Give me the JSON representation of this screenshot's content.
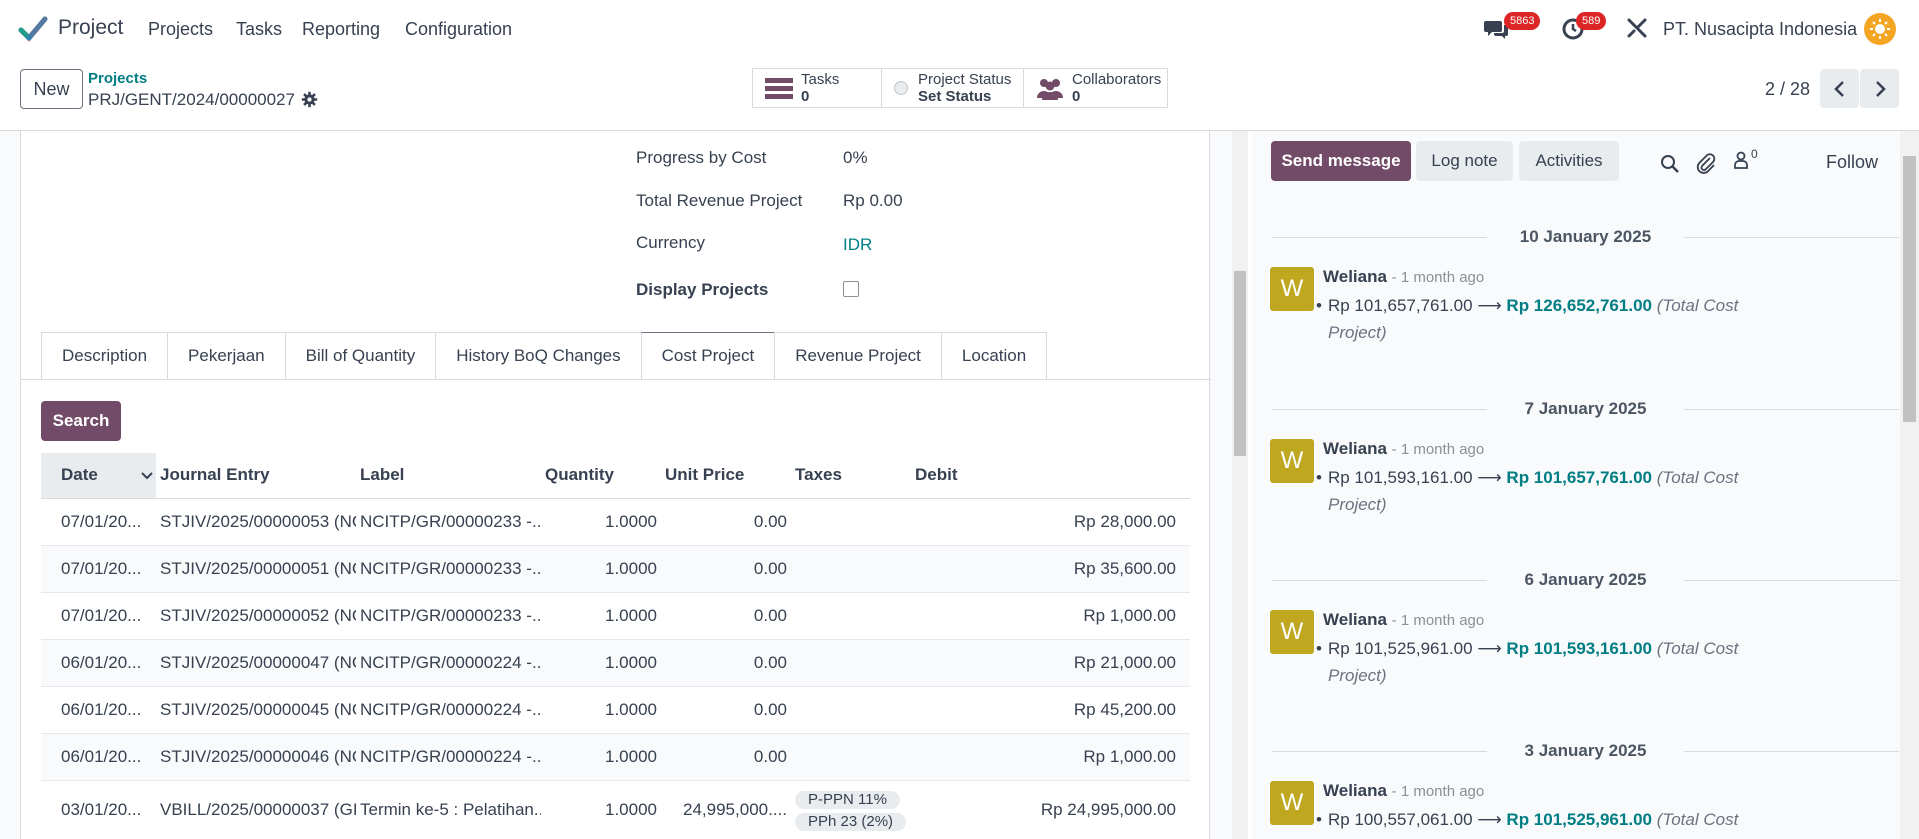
{
  "topbar": {
    "app_name": "Project",
    "menu": [
      "Projects",
      "Tasks",
      "Reporting",
      "Configuration"
    ],
    "messages_count": "5863",
    "activities_count": "589",
    "company": "PT. Nusacipta Indonesia"
  },
  "control_panel": {
    "new_label": "New",
    "breadcrumb_parent": "Projects",
    "breadcrumb_current": "PRJ/GENT/2024/00000027",
    "tasks_label": "Tasks",
    "tasks_count": "0",
    "status_label": "Project Status",
    "status_value": "Set Status",
    "collab_label": "Collaborators",
    "collab_count": "0",
    "pager": "2 / 28"
  },
  "form": {
    "fields": [
      {
        "label": "Progress by Cost",
        "value": "0%"
      },
      {
        "label": "Total Revenue Project",
        "value": "Rp 0.00"
      },
      {
        "label": "Currency",
        "value": "IDR"
      },
      {
        "label": "Display Projects",
        "value": ""
      }
    ],
    "tabs": [
      "Description",
      "Pekerjaan",
      "Bill of Quantity",
      "History BoQ Changes",
      "Cost Project",
      "Revenue Project",
      "Location"
    ],
    "active_tab": "Cost Project",
    "search_label": "Search"
  },
  "cost_table": {
    "headers": [
      "Date",
      "Journal Entry",
      "Label",
      "Quantity",
      "Unit Price",
      "Taxes",
      "Debit"
    ],
    "rows": [
      {
        "date": "07/01/20...",
        "entry": "STJIV/2025/00000053 (NC",
        "label": "NCITP/GR/00000233 -...",
        "qty": "1.0000",
        "price": "0.00",
        "taxes": [],
        "debit": "Rp 28,000.00"
      },
      {
        "date": "07/01/20...",
        "entry": "STJIV/2025/00000051 (NC",
        "label": "NCITP/GR/00000233 -...",
        "qty": "1.0000",
        "price": "0.00",
        "taxes": [],
        "debit": "Rp 35,600.00"
      },
      {
        "date": "07/01/20...",
        "entry": "STJIV/2025/00000052 (NC",
        "label": "NCITP/GR/00000233 -...",
        "qty": "1.0000",
        "price": "0.00",
        "taxes": [],
        "debit": "Rp 1,000.00"
      },
      {
        "date": "06/01/20...",
        "entry": "STJIV/2025/00000047 (NC",
        "label": "NCITP/GR/00000224 -...",
        "qty": "1.0000",
        "price": "0.00",
        "taxes": [],
        "debit": "Rp 21,000.00"
      },
      {
        "date": "06/01/20...",
        "entry": "STJIV/2025/00000045 (NC",
        "label": "NCITP/GR/00000224 -...",
        "qty": "1.0000",
        "price": "0.00",
        "taxes": [],
        "debit": "Rp 45,200.00"
      },
      {
        "date": "06/01/20...",
        "entry": "STJIV/2025/00000046 (NC",
        "label": "NCITP/GR/00000224 -...",
        "qty": "1.0000",
        "price": "0.00",
        "taxes": [],
        "debit": "Rp 1,000.00"
      },
      {
        "date": "03/01/20...",
        "entry": "VBILL/2025/00000037 (GI",
        "label": "Termin ke-5 : Pelatihan...",
        "qty": "1.0000",
        "price": "24,995,000....",
        "taxes": [
          "P-PPN 11%",
          "PPh 23 (2%)"
        ],
        "debit": "Rp 24,995,000.00"
      }
    ]
  },
  "chatter": {
    "send_label": "Send message",
    "log_label": "Log note",
    "activities_label": "Activities",
    "followers_count": "0",
    "follow_label": "Follow",
    "groups": [
      {
        "date": "10 January 2025",
        "author": "Weliana",
        "ago": "- 1 month ago",
        "old": "Rp 101,657,761.00",
        "new": "Rp 126,652,761.00",
        "field": "(Total Cost Project)"
      },
      {
        "date": "7 January 2025",
        "author": "Weliana",
        "ago": "- 1 month ago",
        "old": "Rp 101,593,161.00",
        "new": "Rp 101,657,761.00",
        "field": "(Total Cost Project)"
      },
      {
        "date": "6 January 2025",
        "author": "Weliana",
        "ago": "- 1 month ago",
        "old": "Rp 101,525,961.00",
        "new": "Rp 101,593,161.00",
        "field": "(Total Cost Project)"
      },
      {
        "date": "3 January 2025",
        "author": "Weliana",
        "ago": "- 1 month ago",
        "old": "Rp 100,557,061.00",
        "new": "Rp 101,525,961.00",
        "field": "(Total Cost"
      }
    ],
    "avatar_letter": "W"
  },
  "colors": {
    "brand": "#714b67",
    "link": "#017e84",
    "badge": "#dc2626",
    "avatar": "#bfa81f"
  }
}
